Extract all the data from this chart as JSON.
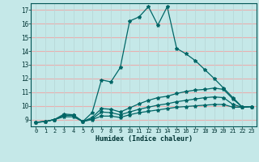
{
  "xlabel": "Humidex (Indice chaleur)",
  "xlim": [
    -0.5,
    23.5
  ],
  "ylim": [
    8.5,
    17.5
  ],
  "xticks": [
    0,
    1,
    2,
    3,
    4,
    5,
    6,
    7,
    8,
    9,
    10,
    11,
    12,
    13,
    14,
    15,
    16,
    17,
    18,
    19,
    20,
    21,
    22,
    23
  ],
  "yticks": [
    9,
    10,
    11,
    12,
    13,
    14,
    15,
    16,
    17
  ],
  "background_color": "#c5e8e8",
  "line_color": "#006666",
  "grid_color_h": "#e8b0b0",
  "grid_color_v": "#b8d8d8",
  "lines": [
    {
      "x": [
        0,
        1,
        2,
        3,
        4,
        5,
        6,
        7,
        8,
        9,
        10,
        11,
        12,
        13,
        14,
        15,
        16,
        17,
        18,
        19,
        20,
        21,
        22,
        23
      ],
      "y": [
        8.8,
        8.85,
        9.0,
        9.4,
        9.35,
        8.85,
        9.5,
        11.9,
        11.75,
        12.8,
        16.2,
        16.5,
        17.25,
        15.9,
        17.25,
        14.2,
        13.8,
        13.3,
        12.65,
        12.0,
        11.3,
        10.6,
        9.9,
        9.95
      ]
    },
    {
      "x": [
        0,
        1,
        2,
        3,
        4,
        5,
        6,
        7,
        8,
        9,
        10,
        11,
        12,
        13,
        14,
        15,
        16,
        17,
        18,
        19,
        20,
        21,
        22,
        23
      ],
      "y": [
        8.8,
        8.85,
        9.0,
        9.3,
        9.3,
        8.85,
        9.15,
        9.8,
        9.75,
        9.55,
        9.85,
        10.15,
        10.4,
        10.6,
        10.7,
        10.9,
        11.05,
        11.15,
        11.2,
        11.3,
        11.2,
        10.5,
        9.9,
        9.95
      ]
    },
    {
      "x": [
        0,
        1,
        2,
        3,
        4,
        5,
        6,
        7,
        8,
        9,
        10,
        11,
        12,
        13,
        14,
        15,
        16,
        17,
        18,
        19,
        20,
        21,
        22,
        23
      ],
      "y": [
        8.8,
        8.85,
        9.0,
        9.3,
        9.3,
        8.85,
        9.05,
        9.55,
        9.5,
        9.35,
        9.55,
        9.75,
        9.9,
        10.05,
        10.15,
        10.3,
        10.4,
        10.5,
        10.6,
        10.65,
        10.6,
        10.1,
        9.9,
        9.95
      ]
    },
    {
      "x": [
        0,
        1,
        2,
        3,
        4,
        5,
        6,
        7,
        8,
        9,
        10,
        11,
        12,
        13,
        14,
        15,
        16,
        17,
        18,
        19,
        20,
        21,
        22,
        23
      ],
      "y": [
        8.8,
        8.85,
        9.0,
        9.2,
        9.2,
        8.85,
        9.0,
        9.25,
        9.25,
        9.15,
        9.35,
        9.5,
        9.6,
        9.7,
        9.8,
        9.9,
        9.95,
        10.0,
        10.05,
        10.1,
        10.1,
        9.9,
        9.9,
        9.95
      ]
    }
  ]
}
